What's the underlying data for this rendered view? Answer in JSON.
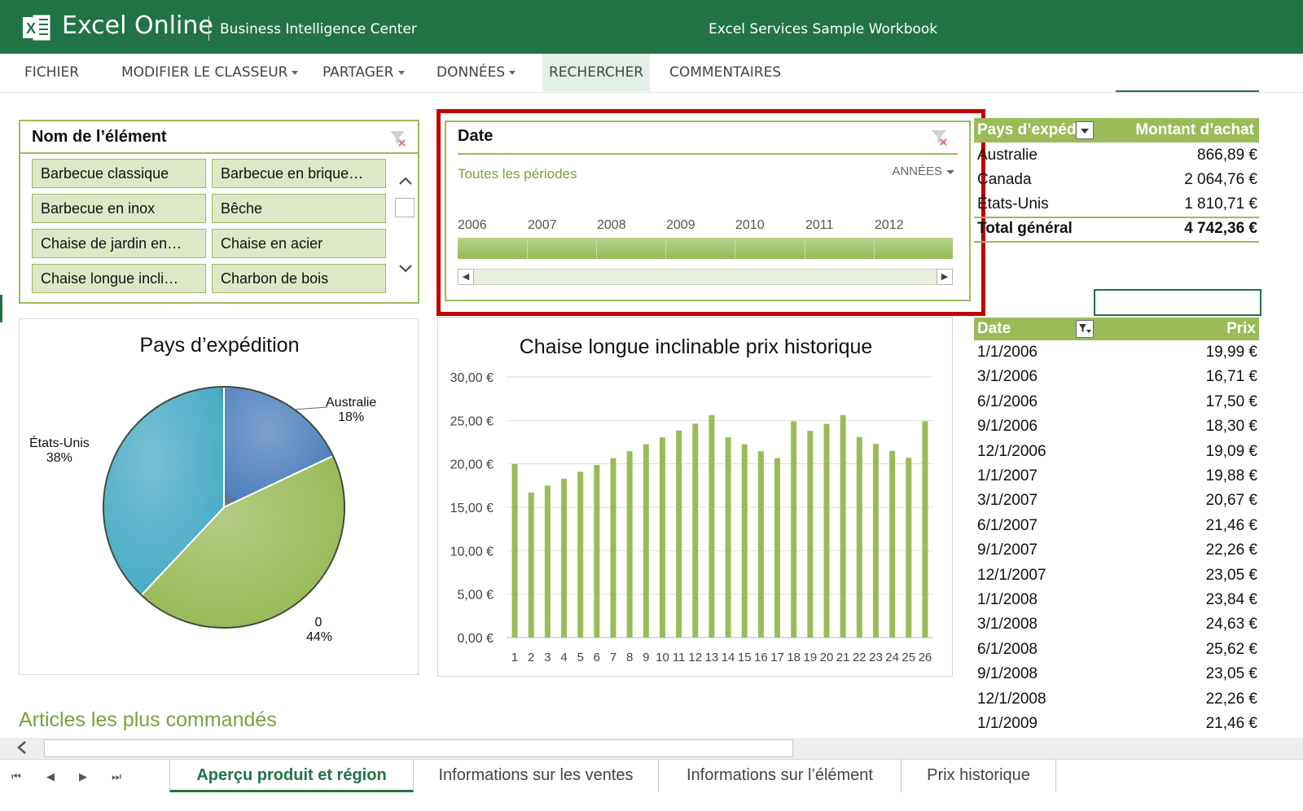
{
  "titlebar": {
    "app_name": "Excel Online",
    "site_name": "Business Intelligence Center",
    "doc_title": "Excel Services Sample Workbook",
    "accent": "#217346"
  },
  "menu": [
    {
      "label": "FICHIER",
      "caret": false
    },
    {
      "label": "MODIFIER LE CLASSEUR",
      "caret": true
    },
    {
      "label": "PARTAGER",
      "caret": true
    },
    {
      "label": "DONNÉES",
      "caret": true
    },
    {
      "label": "RECHERCHER",
      "caret": false,
      "active": true
    },
    {
      "label": "COMMENTAIRES",
      "caret": false
    }
  ],
  "item_slicer": {
    "title": "Nom de l’élément",
    "items": [
      "Barbecue classique",
      "Barbecue en brique…",
      "Barbecue en inox",
      "Bêche",
      "Chaise de jardin en…",
      "Chaise en acier",
      "Chaise longue incli…",
      "Charbon de bois"
    ],
    "clear_icon": "clear-filter-icon"
  },
  "timeline": {
    "title": "Date",
    "all_periods": "Toutes les périodes",
    "level": "ANNÉES",
    "years": [
      "2006",
      "2007",
      "2008",
      "2009",
      "2010",
      "2011",
      "2012"
    ],
    "highlight_color": "#c00000"
  },
  "country_pivot": {
    "headers": [
      "Pays d’expéd",
      "Montant d’achat"
    ],
    "rows": [
      {
        "label": "Australie",
        "value": "866,89 €"
      },
      {
        "label": "Canada",
        "value": "2 064,76 €"
      },
      {
        "label": "États-Unis",
        "value": "1 810,71 €"
      }
    ],
    "total": {
      "label": "Total général",
      "value": "4 742,36 €"
    }
  },
  "price_pivot": {
    "headers": [
      "Date",
      "Prix"
    ],
    "rows": [
      {
        "date": "1/1/2006",
        "price": "19,99 €"
      },
      {
        "date": "3/1/2006",
        "price": "16,71 €"
      },
      {
        "date": "6/1/2006",
        "price": "17,50 €"
      },
      {
        "date": "9/1/2006",
        "price": "18,30 €"
      },
      {
        "date": "12/1/2006",
        "price": "19,09 €"
      },
      {
        "date": "1/1/2007",
        "price": "19,88 €"
      },
      {
        "date": "3/1/2007",
        "price": "20,67 €"
      },
      {
        "date": "6/1/2007",
        "price": "21,46 €"
      },
      {
        "date": "9/1/2007",
        "price": "22,26 €"
      },
      {
        "date": "12/1/2007",
        "price": "23,05 €"
      },
      {
        "date": "1/1/2008",
        "price": "23,84 €"
      },
      {
        "date": "3/1/2008",
        "price": "24,63 €"
      },
      {
        "date": "6/1/2008",
        "price": "25,62 €"
      },
      {
        "date": "9/1/2008",
        "price": "23,05 €"
      },
      {
        "date": "12/1/2008",
        "price": "22,26 €"
      },
      {
        "date": "1/1/2009",
        "price": "21,46 €"
      }
    ]
  },
  "pie_chart": {
    "type": "pie",
    "title": "Pays d’expédition",
    "slices": [
      {
        "label": "Australie",
        "percent_label": "18%",
        "value": 18,
        "color": "#4f81bd"
      },
      {
        "label": "0",
        "percent_label": "44%",
        "value": 44,
        "color": "#9bbb59"
      },
      {
        "label": "États-Unis",
        "percent_label": "38%",
        "value": 38,
        "color": "#4bacc6"
      }
    ]
  },
  "bar_chart": {
    "type": "bar",
    "title": "Chaise longue inclinable prix historique",
    "categories": [
      "1",
      "2",
      "3",
      "4",
      "5",
      "6",
      "7",
      "8",
      "9",
      "10",
      "11",
      "12",
      "13",
      "14",
      "15",
      "16",
      "17",
      "18",
      "19",
      "20",
      "21",
      "22",
      "23",
      "24",
      "25",
      "26"
    ],
    "values": [
      19.99,
      16.71,
      17.5,
      18.3,
      19.09,
      19.88,
      20.67,
      21.46,
      22.26,
      23.05,
      23.84,
      24.63,
      25.62,
      23.05,
      22.26,
      21.46,
      20.67,
      24.9,
      23.8,
      24.6,
      25.6,
      23.1,
      22.3,
      21.5,
      20.7,
      24.9
    ],
    "yticks": [
      "0,00 €",
      "5,00 €",
      "10,00 €",
      "15,00 €",
      "20,00 €",
      "25,00 €",
      "30,00 €"
    ],
    "ylim": [
      0,
      30
    ],
    "bar_color": "#9bbb59"
  },
  "section_title": "Articles les plus commandés",
  "sheet_tabs": [
    {
      "label": "Aperçu produit et région",
      "active": true
    },
    {
      "label": "Informations sur les ventes"
    },
    {
      "label": "Informations sur l’élément"
    },
    {
      "label": "Prix historique"
    }
  ],
  "sheet_nav": [
    "first-sheet-icon",
    "prev-sheet-icon",
    "next-sheet-icon",
    "last-sheet-icon"
  ]
}
